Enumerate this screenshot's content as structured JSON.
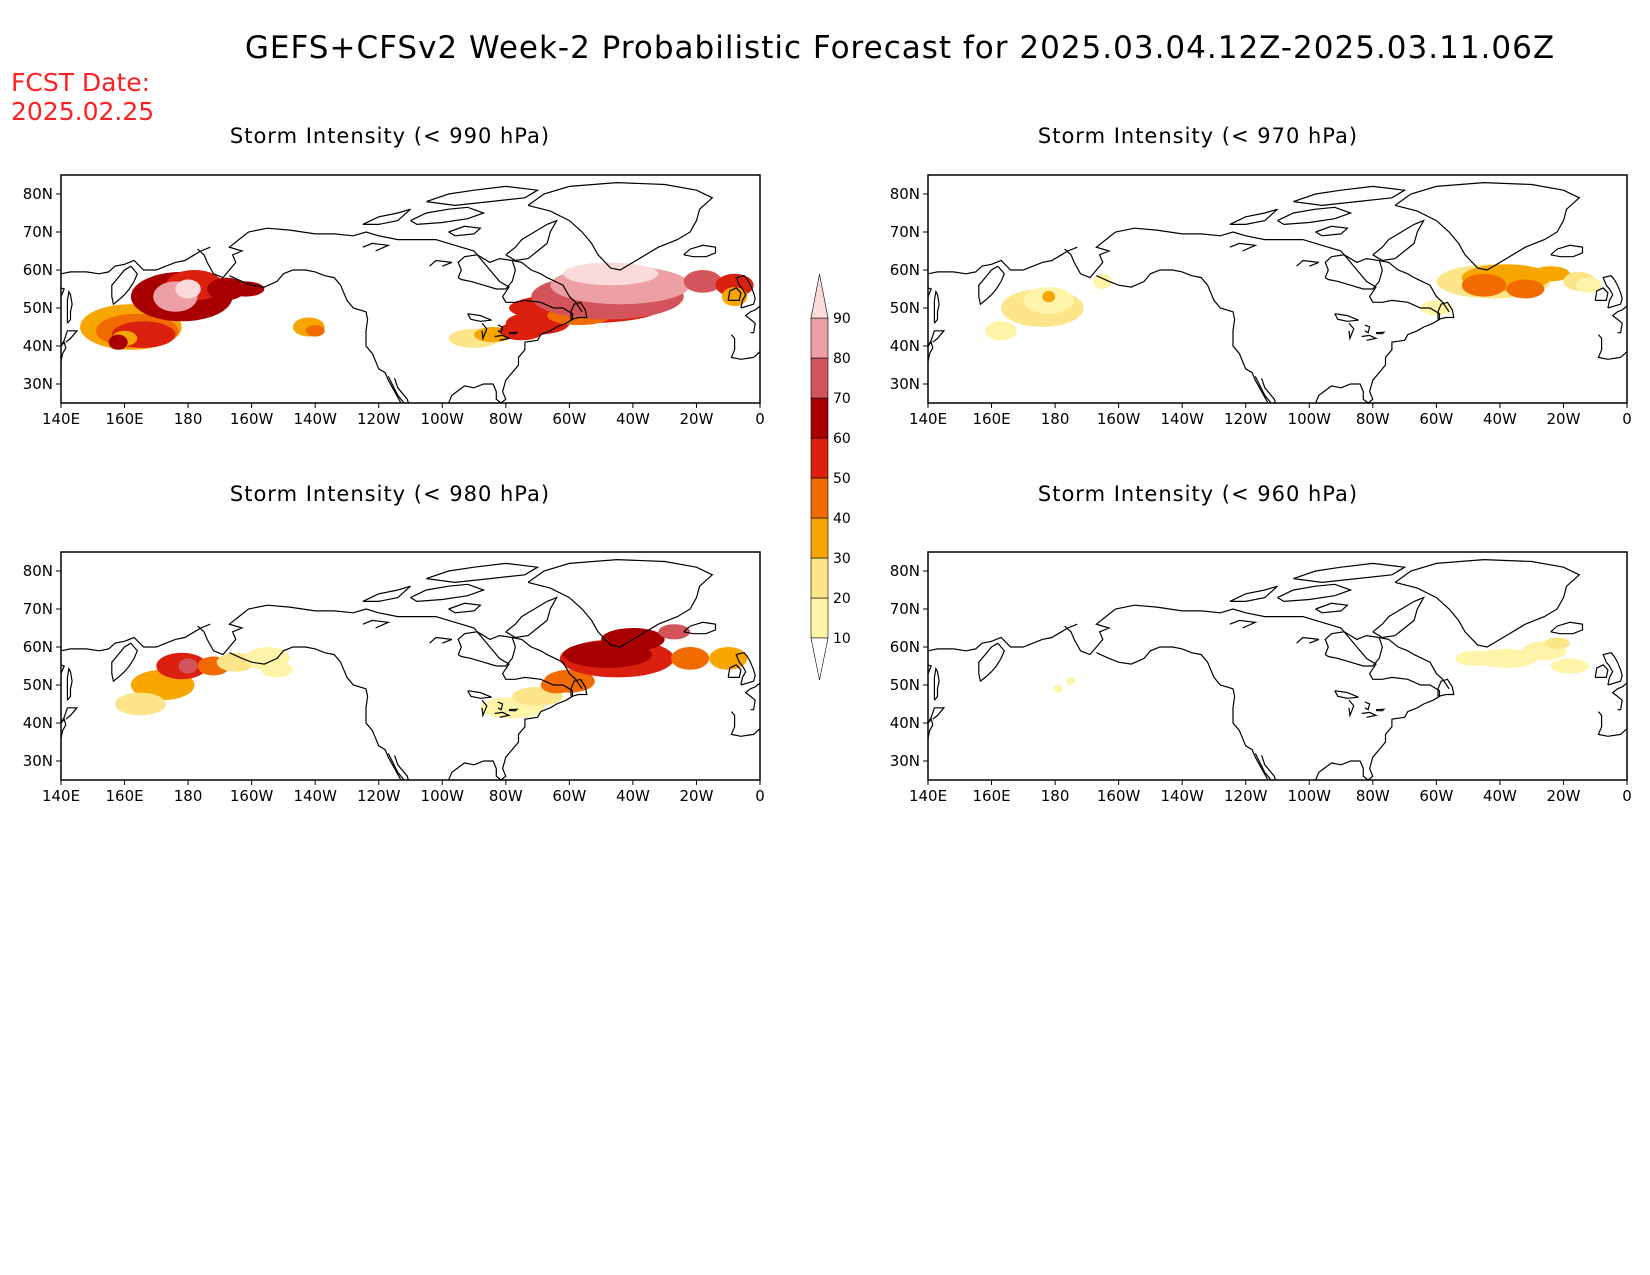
{
  "title": "GEFS+CFSv2 Week-2 Probabilistic Forecast for 2025.03.04.12Z-2025.03.11.06Z",
  "fcst_label": "FCST Date:",
  "fcst_date": "2025.02.25",
  "panels": [
    {
      "title": "Storm Intensity (< 990 hPa)",
      "threshold_hPa": 990
    },
    {
      "title": "Storm Intensity (< 970 hPa)",
      "threshold_hPa": 970
    },
    {
      "title": "Storm Intensity (< 980 hPa)",
      "threshold_hPa": 980
    },
    {
      "title": "Storm Intensity (< 960 hPa)",
      "threshold_hPa": 960
    }
  ],
  "lon_ticks": [
    "140E",
    "160E",
    "180",
    "160W",
    "140W",
    "120W",
    "100W",
    "80W",
    "60W",
    "40W",
    "20W",
    "0"
  ],
  "lat_ticks": [
    "80N",
    "70N",
    "60N",
    "50N",
    "40N",
    "30N"
  ],
  "extent": {
    "lon_west": 140,
    "lon_east": 360,
    "lat_south": 25,
    "lat_north": 85
  },
  "colorbar": {
    "labels": [
      "90",
      "80",
      "70",
      "60",
      "50",
      "40",
      "30",
      "20",
      "10"
    ],
    "colors": [
      "#fff4a8",
      "#fde68a",
      "#f7a600",
      "#f26b00",
      "#dc2010",
      "#a80000",
      "#d4545c",
      "#ec9fa5",
      "#fbdadb"
    ]
  }
}
